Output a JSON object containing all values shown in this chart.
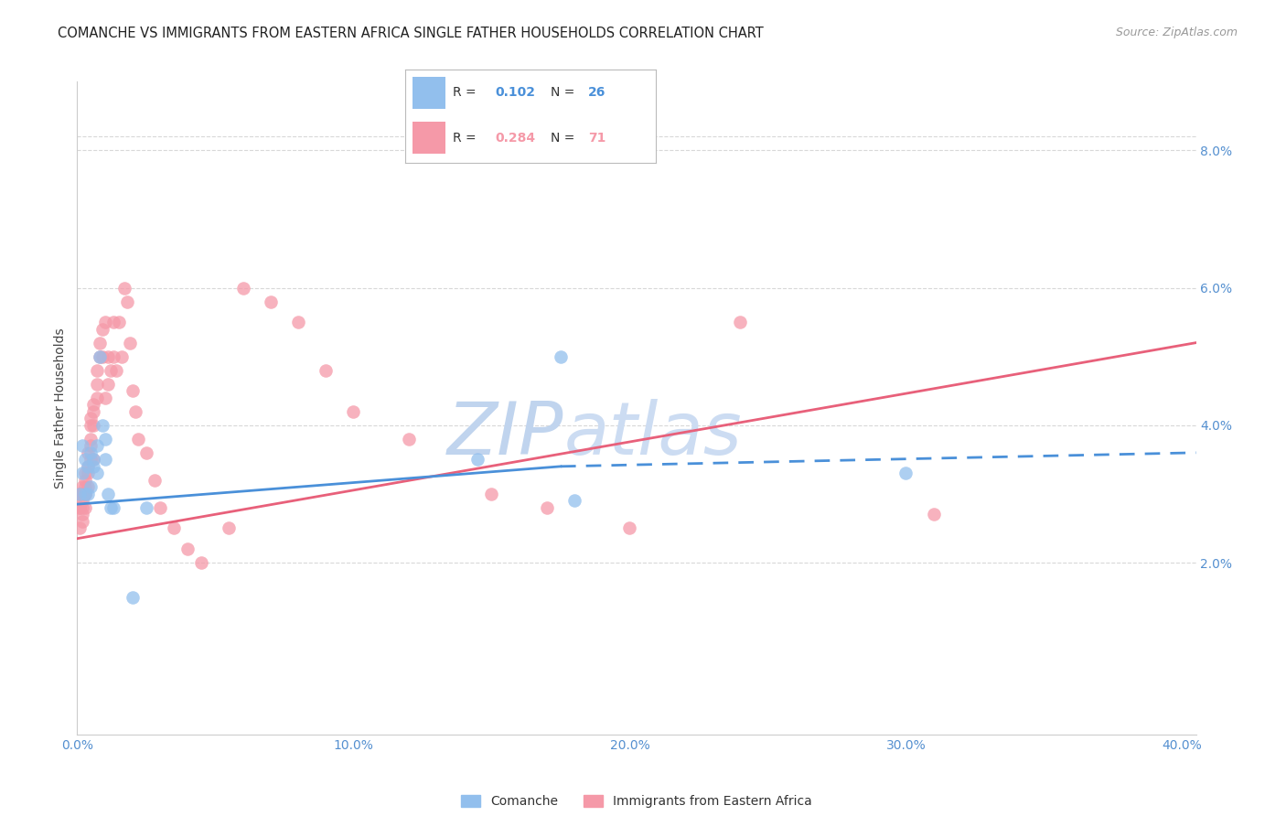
{
  "title": "COMANCHE VS IMMIGRANTS FROM EASTERN AFRICA SINGLE FATHER HOUSEHOLDS CORRELATION CHART",
  "source": "Source: ZipAtlas.com",
  "ylabel": "Single Father Households",
  "comanche_R": "0.102",
  "comanche_N": "26",
  "eastern_africa_R": "0.284",
  "eastern_africa_N": "71",
  "comanche_color": "#92bfed",
  "eastern_africa_color": "#f599a8",
  "regression_comanche_color": "#4a90d9",
  "regression_eastern_africa_color": "#e8607a",
  "watermark_zip_color": "#c5d8f0",
  "watermark_atlas_color": "#d0e4f8",
  "axis_tick_color": "#5590d0",
  "grid_color": "#d8d8d8",
  "spine_color": "#cccccc",
  "title_color": "#222222",
  "source_color": "#999999",
  "ylabel_color": "#444444",
  "xlim": [
    0.0,
    0.405
  ],
  "ylim": [
    -0.005,
    0.09
  ],
  "xtick_vals": [
    0.0,
    0.1,
    0.2,
    0.3,
    0.4
  ],
  "xtick_labels": [
    "0.0%",
    "10.0%",
    "20.0%",
    "30.0%",
    "40.0%"
  ],
  "ytick_vals": [
    0.02,
    0.04,
    0.06,
    0.08
  ],
  "ytick_labels": [
    "2.0%",
    "4.0%",
    "6.0%",
    "8.0%"
  ],
  "comanche_x": [
    0.001,
    0.002,
    0.002,
    0.003,
    0.003,
    0.004,
    0.004,
    0.005,
    0.005,
    0.006,
    0.006,
    0.007,
    0.007,
    0.008,
    0.009,
    0.01,
    0.01,
    0.011,
    0.012,
    0.013,
    0.02,
    0.025,
    0.145,
    0.175,
    0.18,
    0.3
  ],
  "comanche_y": [
    0.03,
    0.033,
    0.037,
    0.03,
    0.035,
    0.03,
    0.034,
    0.031,
    0.036,
    0.034,
    0.035,
    0.033,
    0.037,
    0.05,
    0.04,
    0.035,
    0.038,
    0.03,
    0.028,
    0.028,
    0.015,
    0.028,
    0.035,
    0.05,
    0.029,
    0.033
  ],
  "eastern_africa_x": [
    0.001,
    0.001,
    0.001,
    0.001,
    0.001,
    0.002,
    0.002,
    0.002,
    0.002,
    0.002,
    0.002,
    0.003,
    0.003,
    0.003,
    0.003,
    0.003,
    0.003,
    0.004,
    0.004,
    0.004,
    0.004,
    0.005,
    0.005,
    0.005,
    0.005,
    0.005,
    0.006,
    0.006,
    0.006,
    0.006,
    0.007,
    0.007,
    0.007,
    0.008,
    0.008,
    0.009,
    0.009,
    0.01,
    0.01,
    0.011,
    0.011,
    0.012,
    0.013,
    0.013,
    0.014,
    0.015,
    0.016,
    0.017,
    0.018,
    0.019,
    0.02,
    0.021,
    0.022,
    0.025,
    0.028,
    0.03,
    0.035,
    0.04,
    0.045,
    0.055,
    0.06,
    0.07,
    0.08,
    0.09,
    0.1,
    0.12,
    0.15,
    0.17,
    0.2,
    0.24,
    0.31
  ],
  "eastern_africa_y": [
    0.028,
    0.03,
    0.025,
    0.028,
    0.03,
    0.028,
    0.027,
    0.03,
    0.026,
    0.029,
    0.031,
    0.03,
    0.028,
    0.032,
    0.033,
    0.031,
    0.03,
    0.034,
    0.036,
    0.031,
    0.033,
    0.037,
    0.035,
    0.04,
    0.038,
    0.041,
    0.04,
    0.043,
    0.042,
    0.035,
    0.044,
    0.048,
    0.046,
    0.05,
    0.052,
    0.054,
    0.05,
    0.055,
    0.044,
    0.05,
    0.046,
    0.048,
    0.055,
    0.05,
    0.048,
    0.055,
    0.05,
    0.06,
    0.058,
    0.052,
    0.045,
    0.042,
    0.038,
    0.036,
    0.032,
    0.028,
    0.025,
    0.022,
    0.02,
    0.025,
    0.06,
    0.058,
    0.055,
    0.048,
    0.042,
    0.038,
    0.03,
    0.028,
    0.025,
    0.055,
    0.027
  ],
  "regression_comanche_x0": 0.0,
  "regression_comanche_x_solid_end": 0.175,
  "regression_comanche_x_dashed_end": 0.405,
  "regression_comanche_y0": 0.0285,
  "regression_comanche_y_solid_end": 0.034,
  "regression_comanche_y_dashed_end": 0.036,
  "regression_ea_x0": 0.0,
  "regression_ea_x_end": 0.405,
  "regression_ea_y0": 0.0235,
  "regression_ea_y_end": 0.052,
  "marker_size": 110
}
